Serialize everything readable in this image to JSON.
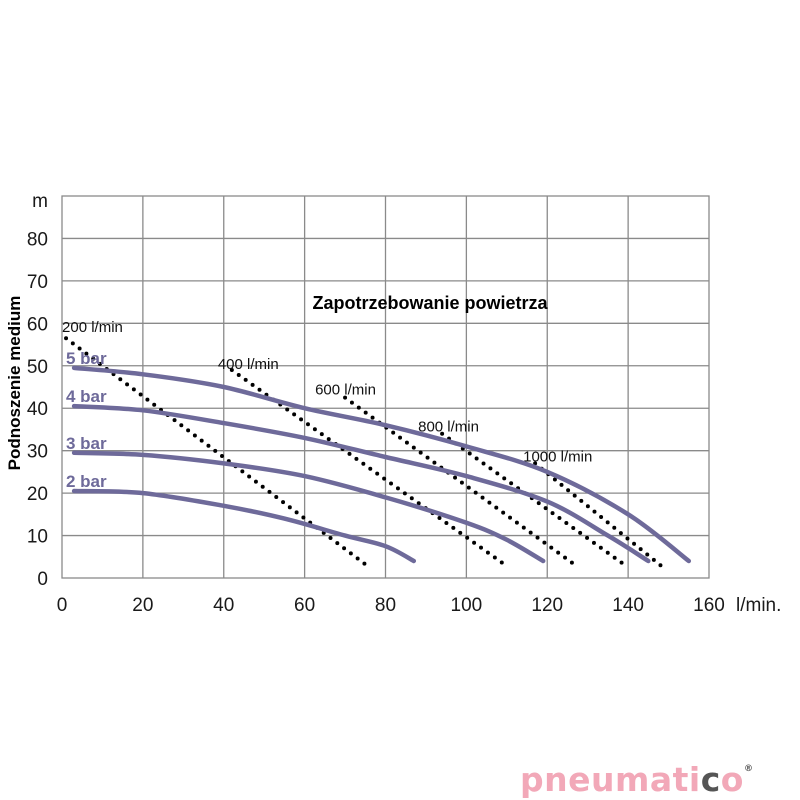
{
  "chart_data": {
    "type": "line",
    "title": "Zapotrzebowanie powietrza",
    "ylabel": "Podnoszenie medium",
    "y_unit": "m",
    "x_unit": "l/min.",
    "xlim": [
      0,
      160
    ],
    "ylim": [
      0,
      90
    ],
    "x_ticks": [
      "0",
      "20",
      "40",
      "60",
      "80",
      "100",
      "120",
      "140",
      "160"
    ],
    "y_ticks": [
      "0",
      "10",
      "20",
      "30",
      "40",
      "50",
      "60",
      "70",
      "80"
    ],
    "grid": true,
    "pressure_series": [
      {
        "name": "5 bar",
        "points": [
          [
            3,
            49.5
          ],
          [
            20,
            48
          ],
          [
            40,
            45
          ],
          [
            60,
            40
          ],
          [
            80,
            36
          ],
          [
            100,
            31
          ],
          [
            120,
            25
          ],
          [
            140,
            15
          ],
          [
            155,
            4
          ]
        ]
      },
      {
        "name": "4 bar",
        "points": [
          [
            3,
            40.5
          ],
          [
            20,
            39.5
          ],
          [
            40,
            36.5
          ],
          [
            60,
            33
          ],
          [
            80,
            28.5
          ],
          [
            100,
            24
          ],
          [
            120,
            18
          ],
          [
            135,
            10
          ],
          [
            145,
            4
          ]
        ]
      },
      {
        "name": "3 bar",
        "points": [
          [
            3,
            29.5
          ],
          [
            20,
            29
          ],
          [
            40,
            27
          ],
          [
            60,
            24
          ],
          [
            80,
            19
          ],
          [
            100,
            13
          ],
          [
            110,
            9
          ],
          [
            119,
            4
          ]
        ]
      },
      {
        "name": "2 bar",
        "points": [
          [
            3,
            20.5
          ],
          [
            20,
            20
          ],
          [
            40,
            17
          ],
          [
            55,
            14
          ],
          [
            70,
            10
          ],
          [
            80,
            7.5
          ],
          [
            87,
            4
          ]
        ]
      }
    ],
    "air_consumption_series": [
      {
        "name": "200 l/min",
        "points": [
          [
            1,
            56.5
          ],
          [
            76,
            2.5
          ]
        ]
      },
      {
        "name": "400 l/min",
        "points": [
          [
            42,
            49
          ],
          [
            109,
            3.5
          ]
        ]
      },
      {
        "name": "600 l/min",
        "points": [
          [
            70,
            42.5
          ],
          [
            127,
            3
          ]
        ]
      },
      {
        "name": "800 l/min",
        "points": [
          [
            94,
            34
          ],
          [
            140,
            2.5
          ]
        ]
      },
      {
        "name": "1000 l/min",
        "points": [
          [
            117,
            27
          ],
          [
            148,
            3
          ]
        ]
      }
    ],
    "colors": {
      "pressure": "#6e6a9a",
      "consumption": "#000000",
      "grid": "#8a8a8a"
    }
  },
  "logo": {
    "part1": "pneumati",
    "part2": "c",
    "part3": "o",
    "reg": "®",
    "color1": "#f2a8b8",
    "color2": "#555555"
  }
}
